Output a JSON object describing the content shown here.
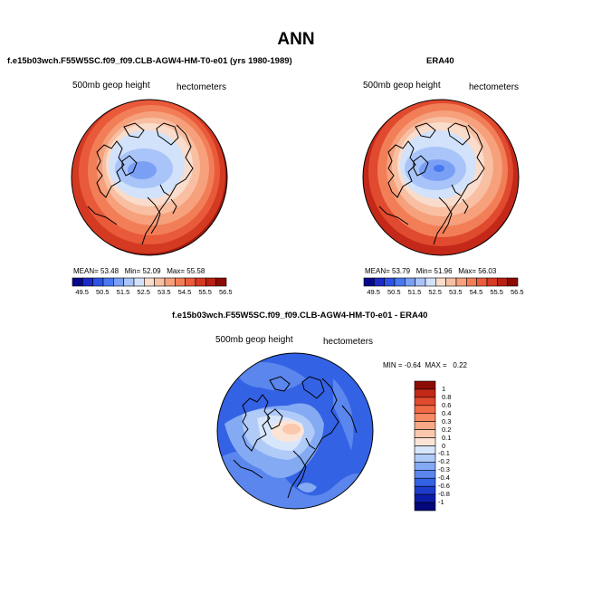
{
  "title": "ANN",
  "panels": [
    {
      "subtitle": "f.e15b03wch.F55W5SC.f09_f09.CLB-AGW4-HM-T0-e01 (yrs 1980-1989)",
      "field": "500mb geop height",
      "units": "hectometers",
      "stats": {
        "mean_label": "MEAN=",
        "mean": "53.48",
        "min_label": "Min=",
        "min": "52.09",
        "max_label": "Max=",
        "max": "55.58"
      }
    },
    {
      "subtitle": "ERA40",
      "field": "500mb geop height",
      "units": "hectometers",
      "stats": {
        "mean_label": "MEAN=",
        "mean": "53.79",
        "min_label": "Min=",
        "min": "51.96",
        "max_label": "Max=",
        "max": "56.03"
      }
    }
  ],
  "colorbar_h": {
    "ticks": [
      "49.5",
      "50.5",
      "51.5",
      "52.5",
      "53.5",
      "54.5",
      "55.5",
      "56.5"
    ],
    "colors": [
      "#08088a",
      "#1c2ac8",
      "#2d52e6",
      "#4a78f2",
      "#7aa0f6",
      "#a8c4f8",
      "#d2e2fb",
      "#f9dccb",
      "#f8bfa2",
      "#f6a07c",
      "#f27e58",
      "#eb5c3a",
      "#d73a22",
      "#b82012",
      "#8c0c05"
    ]
  },
  "difference": {
    "subtitle": "f.e15b03wch.F55W5SC.f09_f09.CLB-AGW4-HM-T0-e01 - ERA40",
    "field": "500mb geop height",
    "units": "hectometers",
    "minmax": {
      "min_label": "MIN =",
      "min": "-0.64",
      "max_label": "MAX =",
      "max": "0.22"
    },
    "colorbar_v": {
      "labels": [
        "1",
        "0.8",
        "0.6",
        "0.4",
        "0.3",
        "0.2",
        "0.1",
        "0",
        "-0.1",
        "-0.2",
        "-0.3",
        "-0.4",
        "-0.6",
        "-0.8",
        "-1"
      ],
      "colors": [
        "#8c0c05",
        "#c42818",
        "#e04a2e",
        "#f06a46",
        "#f68a64",
        "#f8a886",
        "#f9c8ad",
        "#fbe4d6",
        "#d8e6fb",
        "#b0cbf8",
        "#84aaf4",
        "#5a86ee",
        "#3462e4",
        "#1c3ccc",
        "#0c1ca8",
        "#04087a"
      ]
    }
  }
}
